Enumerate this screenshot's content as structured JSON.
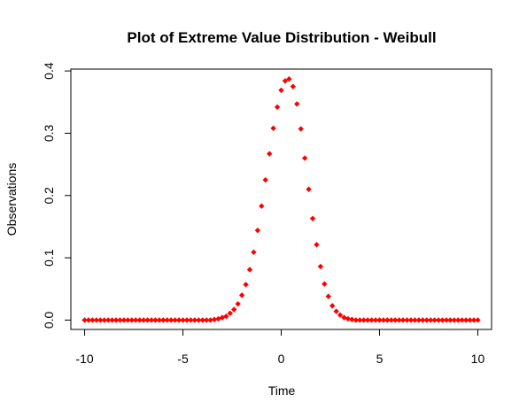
{
  "chart_data": {
    "type": "scatter",
    "title": "Plot of Extreme Value Distribution - Weibull",
    "xlabel": "Time",
    "ylabel": "Observations",
    "color": "#ff0000",
    "x": [
      -10,
      -9.8,
      -9.6,
      -9.4,
      -9.2,
      -9,
      -8.8,
      -8.6,
      -8.4,
      -8.2,
      -8,
      -7.8,
      -7.6,
      -7.4,
      -7.2,
      -7,
      -6.8,
      -6.6,
      -6.4,
      -6.2,
      -6,
      -5.8,
      -5.6,
      -5.4,
      -5.2,
      -5,
      -4.8,
      -4.6,
      -4.4,
      -4.2,
      -4,
      -3.8,
      -3.6,
      -3.4,
      -3.2,
      -3,
      -2.8,
      -2.6,
      -2.4,
      -2.2,
      -2,
      -1.8,
      -1.6,
      -1.4,
      -1.2,
      -1,
      -0.8,
      -0.6,
      -0.4,
      -0.2,
      0,
      0.2,
      0.4,
      0.6,
      0.8,
      1,
      1.2,
      1.4,
      1.6,
      1.8,
      2,
      2.2,
      2.4,
      2.6,
      2.8,
      3,
      3.2,
      3.4,
      3.6,
      3.8,
      4,
      4.2,
      4.4,
      4.6,
      4.8,
      5,
      5.2,
      5.4,
      5.6,
      5.8,
      6,
      6.2,
      6.4,
      6.6,
      6.8,
      7,
      7.2,
      7.4,
      7.6,
      7.8,
      8,
      8.2,
      8.4,
      8.6,
      8.8,
      9,
      9.2,
      9.4,
      9.6,
      9.8,
      10
    ],
    "values": [
      0,
      0,
      0,
      0,
      0,
      0,
      0,
      0,
      0,
      0,
      0,
      0,
      0,
      0,
      0,
      0,
      0,
      0,
      0,
      0,
      0,
      0,
      0,
      0,
      0,
      0,
      0,
      0,
      0,
      0,
      0,
      0,
      0,
      0.001,
      0.002,
      0.004,
      0.006,
      0.011,
      0.017,
      0.026,
      0.04,
      0.057,
      0.081,
      0.109,
      0.144,
      0.183,
      0.225,
      0.267,
      0.308,
      0.342,
      0.369,
      0.384,
      0.387,
      0.375,
      0.347,
      0.307,
      0.26,
      0.21,
      0.163,
      0.121,
      0.086,
      0.058,
      0.038,
      0.023,
      0.014,
      0.008,
      0.004,
      0.002,
      0.001,
      0,
      0,
      0,
      0,
      0,
      0,
      0,
      0,
      0,
      0,
      0,
      0,
      0,
      0,
      0,
      0,
      0,
      0,
      0,
      0,
      0,
      0,
      0,
      0,
      0,
      0,
      0,
      0,
      0,
      0,
      0,
      0
    ],
    "xlim": [
      -10.7,
      10.7
    ],
    "xticks": [
      -10,
      -5,
      0,
      5,
      10
    ],
    "ylim": [
      -0.015,
      0.403
    ],
    "yticks": [
      {
        "value": 0,
        "label": "0.0"
      },
      0.1,
      0.2,
      0.3,
      0.4
    ]
  }
}
